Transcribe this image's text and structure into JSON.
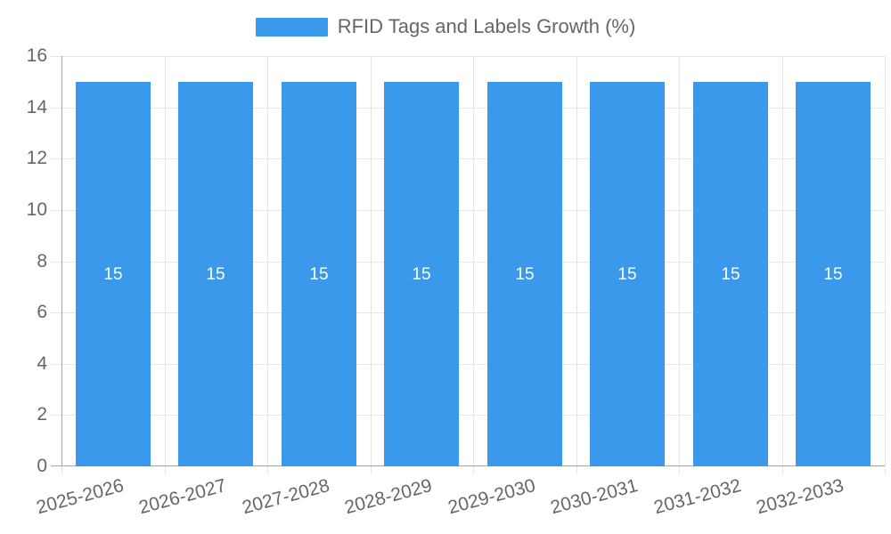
{
  "legend": {
    "label": "RFID Tags and Labels Growth (%)"
  },
  "chart_data": {
    "type": "bar",
    "title": "RFID Tags and Labels Growth (%)",
    "categories": [
      "2025-2026",
      "2026-2027",
      "2027-2028",
      "2028-2029",
      "2029-2030",
      "2030-2031",
      "2031-2032",
      "2032-2033"
    ],
    "values": [
      15,
      15,
      15,
      15,
      15,
      15,
      15,
      15
    ],
    "xlabel": "",
    "ylabel": "",
    "ylim": [
      0,
      16
    ],
    "ytick_step": 2,
    "grid": true,
    "legend_position": "top",
    "colors": {
      "bar": "#3b99ec",
      "grid": "#e6e6e6",
      "axis": "#a5a5a5",
      "tick_text": "#666666",
      "bar_label": "#ffffff"
    }
  }
}
